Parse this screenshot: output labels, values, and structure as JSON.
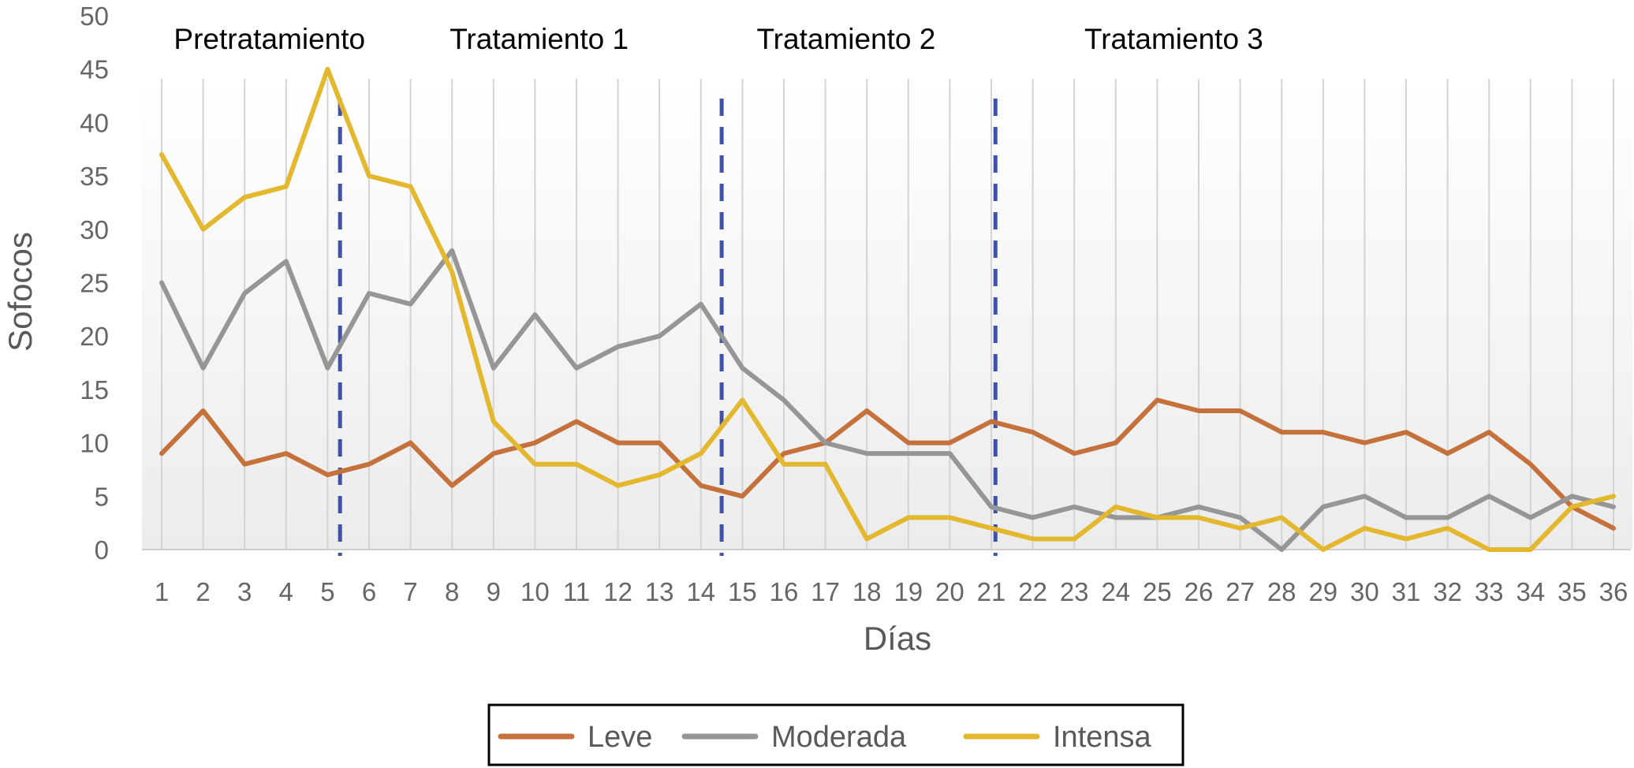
{
  "chart_data": {
    "type": "line",
    "xlabel": "Días",
    "ylabel": "Sofocos",
    "ylim": [
      0,
      50
    ],
    "yticks": [
      0,
      5,
      10,
      15,
      20,
      25,
      30,
      35,
      40,
      45,
      50
    ],
    "x": [
      1,
      2,
      3,
      4,
      5,
      6,
      7,
      8,
      9,
      10,
      11,
      12,
      13,
      14,
      15,
      16,
      17,
      18,
      19,
      20,
      21,
      22,
      23,
      24,
      25,
      26,
      27,
      28,
      29,
      30,
      31,
      32,
      33,
      34,
      35,
      36
    ],
    "series": [
      {
        "name": "Leve",
        "color": "#c5713b",
        "values": [
          9,
          13,
          8,
          9,
          7,
          8,
          10,
          6,
          9,
          10,
          12,
          10,
          10,
          6,
          5,
          9,
          10,
          13,
          10,
          10,
          12,
          11,
          9,
          10,
          14,
          13,
          13,
          11,
          11,
          10,
          11,
          9,
          11,
          8,
          4,
          2
        ]
      },
      {
        "name": "Moderada",
        "color": "#969696",
        "values": [
          25,
          17,
          24,
          27,
          17,
          24,
          23,
          28,
          17,
          22,
          17,
          19,
          20,
          23,
          17,
          14,
          10,
          9,
          9,
          9,
          4,
          3,
          4,
          3,
          3,
          4,
          3,
          0,
          4,
          5,
          3,
          3,
          5,
          3,
          5,
          4
        ]
      },
      {
        "name": "Intensa",
        "color": "#e3b82e",
        "values": [
          37,
          30,
          33,
          34,
          45,
          35,
          34,
          26,
          12,
          8,
          8,
          6,
          7,
          9,
          14,
          8,
          8,
          1,
          3,
          3,
          2,
          1,
          1,
          4,
          3,
          3,
          2,
          3,
          0,
          2,
          1,
          2,
          0,
          0,
          4,
          5
        ]
      }
    ],
    "phase_dividers": [
      5.3,
      14.5,
      21.1
    ],
    "phase_divider_color": "#3f51a8",
    "phases": [
      {
        "label": "Pretratamiento",
        "x": 3.6
      },
      {
        "label": "Tratamiento 1",
        "x": 10.1
      },
      {
        "label": "Tratamiento 2",
        "x": 17.5
      },
      {
        "label": "Tratamiento 3",
        "x": 25.4
      }
    ],
    "grid": {
      "vertical": true,
      "horizontal": false
    },
    "legend_position": "bottom"
  }
}
